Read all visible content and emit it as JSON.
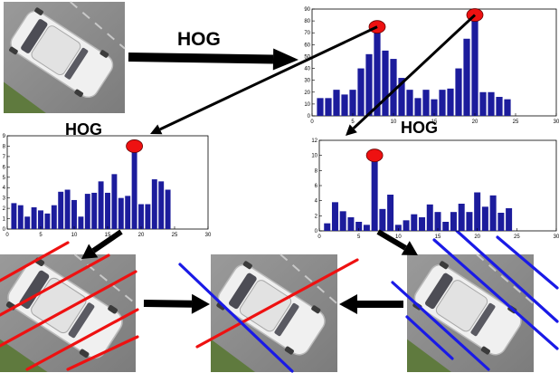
{
  "labels": {
    "hog_top": "HOG",
    "hog_left": "HOG",
    "hog_right": "HOG"
  },
  "colors": {
    "bar": "#1c1c9c",
    "peak_marker": "#ee1111",
    "red_lines": "#ee1111",
    "blue_lines": "#1a1ae6",
    "arrow": "#000000",
    "asphalt": "#8d8d8d",
    "grass": "#5f7a3e",
    "car": "#f0f0f0"
  },
  "icons": {
    "car_photo": "car-photo-icon",
    "peak_marker": "red-dot-icon"
  },
  "chart_data": [
    {
      "id": "combined",
      "type": "bar",
      "x": [
        1,
        2,
        3,
        4,
        5,
        6,
        7,
        8,
        9,
        10,
        11,
        12,
        13,
        14,
        15,
        16,
        17,
        18,
        19,
        20,
        21,
        22,
        23,
        24
      ],
      "values": [
        15,
        15,
        22,
        18,
        22,
        40,
        52,
        75,
        55,
        48,
        32,
        22,
        15,
        22,
        14,
        22,
        23,
        40,
        65,
        85,
        20,
        20,
        16,
        14
      ],
      "xlim": [
        0,
        30
      ],
      "ylim": [
        0,
        90
      ],
      "xticks": [
        0,
        5,
        10,
        15,
        20,
        25,
        30
      ],
      "yticks": [
        0,
        10,
        20,
        30,
        40,
        50,
        60,
        70,
        80,
        90
      ],
      "peaks": [
        8,
        20
      ]
    },
    {
      "id": "left",
      "type": "bar",
      "x": [
        1,
        2,
        3,
        4,
        5,
        6,
        7,
        8,
        9,
        10,
        11,
        12,
        13,
        14,
        15,
        16,
        17,
        18,
        19,
        20,
        21,
        22,
        23,
        24
      ],
      "values": [
        2.5,
        2.3,
        1.2,
        2.1,
        1.8,
        1.5,
        2.3,
        3.6,
        3.8,
        2.8,
        1.2,
        3.4,
        3.5,
        4.6,
        3.5,
        5.3,
        3.0,
        3.2,
        8.0,
        2.4,
        2.4,
        4.8,
        4.6,
        3.8
      ],
      "xlim": [
        0,
        30
      ],
      "ylim": [
        0,
        9
      ],
      "xticks": [
        0,
        5,
        10,
        15,
        20,
        25,
        30
      ],
      "yticks": [
        0,
        1,
        2,
        3,
        4,
        5,
        6,
        7,
        8,
        9
      ],
      "peaks": [
        19
      ]
    },
    {
      "id": "right",
      "type": "bar",
      "x": [
        1,
        2,
        3,
        4,
        5,
        6,
        7,
        8,
        9,
        10,
        11,
        12,
        13,
        14,
        15,
        16,
        17,
        18,
        19,
        20,
        21,
        22,
        23,
        24
      ],
      "values": [
        1.0,
        3.8,
        2.6,
        1.8,
        1.2,
        0.8,
        10.0,
        2.9,
        4.8,
        0.8,
        1.4,
        2.2,
        1.8,
        3.5,
        2.5,
        1.2,
        2.5,
        3.6,
        2.5,
        5.1,
        3.2,
        4.7,
        2.4,
        3.0
      ],
      "xlim": [
        0,
        30
      ],
      "ylim": [
        0,
        12
      ],
      "xticks": [
        0,
        5,
        10,
        15,
        20,
        25,
        30
      ],
      "yticks": [
        0,
        2,
        4,
        6,
        8,
        10,
        12
      ],
      "peaks": [
        7
      ]
    }
  ]
}
